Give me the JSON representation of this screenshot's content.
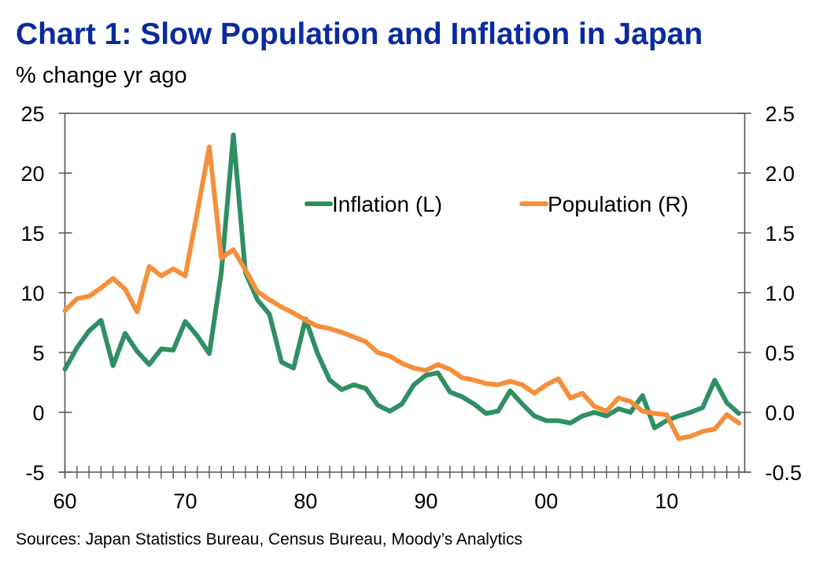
{
  "title": "Chart 1: Slow Population and Inflation in Japan",
  "subtitle": "% change yr ago",
  "source": "Sources: Japan Statistics Bureau, Census Bureau, Moody’s Analytics",
  "colors": {
    "title": "#0a2aa0",
    "inflation": "#2f8f63",
    "population": "#f58f3b",
    "axis": "#555555"
  },
  "chart_data": {
    "type": "line",
    "title": "Chart 1: Slow Population and Inflation in Japan",
    "ylabel": "% change yr ago",
    "xlabel": "",
    "x": [
      1960,
      1961,
      1962,
      1963,
      1964,
      1965,
      1966,
      1967,
      1968,
      1969,
      1970,
      1971,
      1972,
      1973,
      1974,
      1975,
      1976,
      1977,
      1978,
      1979,
      1980,
      1981,
      1982,
      1983,
      1984,
      1985,
      1986,
      1987,
      1988,
      1989,
      1990,
      1991,
      1992,
      1993,
      1994,
      1995,
      1996,
      1997,
      1998,
      1999,
      2000,
      2001,
      2002,
      2003,
      2004,
      2005,
      2006,
      2007,
      2008,
      2009,
      2010,
      2011,
      2012,
      2013,
      2014,
      2015,
      2016
    ],
    "x_tick_labels": [
      "60",
      "70",
      "80",
      "90",
      "00",
      "10"
    ],
    "x_tick_values": [
      1960,
      1970,
      1980,
      1990,
      2000,
      2010
    ],
    "xlim": [
      1960,
      2016
    ],
    "y_left": {
      "ylim": [
        -5,
        25
      ],
      "ticks": [
        -5,
        0,
        5,
        10,
        15,
        20,
        25
      ],
      "tick_labels": [
        "-5",
        "0",
        "5",
        "10",
        "15",
        "20",
        "25"
      ]
    },
    "y_right": {
      "ylim": [
        -0.5,
        2.5
      ],
      "ticks": [
        -0.5,
        0.0,
        0.5,
        1.0,
        1.5,
        2.0,
        2.5
      ],
      "tick_labels": [
        "-0.5",
        "0.0",
        "0.5",
        "1.0",
        "1.5",
        "2.0",
        "2.5"
      ]
    },
    "grid": false,
    "legend_position": "top-center",
    "series": [
      {
        "name": "Inflation (L)",
        "axis": "left",
        "color": "#2f8f63",
        "values": [
          3.6,
          5.4,
          6.8,
          7.7,
          3.9,
          6.6,
          5.1,
          4.0,
          5.3,
          5.2,
          7.6,
          6.4,
          4.9,
          11.7,
          23.2,
          11.7,
          9.4,
          8.2,
          4.2,
          3.7,
          7.8,
          4.9,
          2.7,
          1.9,
          2.3,
          2.0,
          0.6,
          0.1,
          0.7,
          2.3,
          3.1,
          3.3,
          1.7,
          1.3,
          0.7,
          -0.1,
          0.1,
          1.8,
          0.7,
          -0.3,
          -0.7,
          -0.7,
          -0.9,
          -0.3,
          0.0,
          -0.3,
          0.3,
          0.0,
          1.4,
          -1.3,
          -0.7,
          -0.3,
          0.0,
          0.4,
          2.7,
          0.8,
          -0.1
        ]
      },
      {
        "name": "Population (R)",
        "axis": "right",
        "color": "#f58f3b",
        "values": [
          0.85,
          0.95,
          0.97,
          1.04,
          1.12,
          1.03,
          0.84,
          1.22,
          1.14,
          1.2,
          1.14,
          1.67,
          2.22,
          1.29,
          1.36,
          1.19,
          1.01,
          0.94,
          0.88,
          0.83,
          0.77,
          0.72,
          0.7,
          0.67,
          0.63,
          0.59,
          0.5,
          0.47,
          0.41,
          0.37,
          0.35,
          0.4,
          0.36,
          0.29,
          0.27,
          0.24,
          0.23,
          0.26,
          0.23,
          0.16,
          0.23,
          0.28,
          0.12,
          0.16,
          0.05,
          0.01,
          0.12,
          0.09,
          0.01,
          -0.01,
          -0.02,
          -0.22,
          -0.2,
          -0.16,
          -0.14,
          -0.02,
          -0.09
        ]
      }
    ]
  }
}
